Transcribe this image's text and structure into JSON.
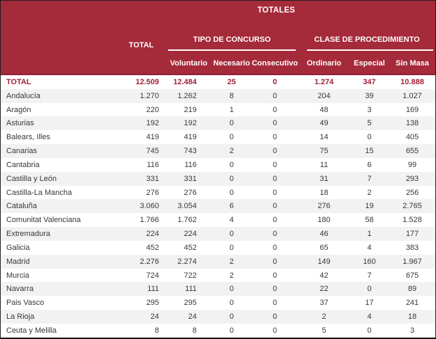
{
  "header": {
    "totales": "TOTALES",
    "total_column": "TOTAL",
    "groups": {
      "tipo": "TIPO DE CONCURSO",
      "clase": "CLASE DE PROCEDIMIENTO"
    },
    "subcolumns": [
      "Voluntario",
      "Necesario",
      "Consecutivo",
      "Ordinario",
      "Especial",
      "Sin Masa"
    ]
  },
  "colors": {
    "header_bg": "#A52A3A",
    "divider": "#8C2138",
    "stripe": "#F2F2F2",
    "total_text": "#9E2239",
    "body_text": "#373737"
  },
  "table": {
    "rows": [
      {
        "label": "TOTAL",
        "values": [
          "12.509",
          "12.484",
          "25",
          "0",
          "1.274",
          "347",
          "10.888"
        ]
      },
      {
        "label": "Andalucía",
        "values": [
          "1.270",
          "1.262",
          "8",
          "0",
          "204",
          "39",
          "1.027"
        ]
      },
      {
        "label": "Aragón",
        "values": [
          "220",
          "219",
          "1",
          "0",
          "48",
          "3",
          "169"
        ]
      },
      {
        "label": "Asturias",
        "values": [
          "192",
          "192",
          "0",
          "0",
          "49",
          "5",
          "138"
        ]
      },
      {
        "label": "Balears, Illes",
        "values": [
          "419",
          "419",
          "0",
          "0",
          "14",
          "0",
          "405"
        ]
      },
      {
        "label": "Canarias",
        "values": [
          "745",
          "743",
          "2",
          "0",
          "75",
          "15",
          "655"
        ]
      },
      {
        "label": "Cantabria",
        "values": [
          "116",
          "116",
          "0",
          "0",
          "11",
          "6",
          "99"
        ]
      },
      {
        "label": "Castilla y León",
        "values": [
          "331",
          "331",
          "0",
          "0",
          "31",
          "7",
          "293"
        ]
      },
      {
        "label": "Castilla-La Mancha",
        "values": [
          "276",
          "276",
          "0",
          "0",
          "18",
          "2",
          "256"
        ]
      },
      {
        "label": "Cataluña",
        "values": [
          "3.060",
          "3.054",
          "6",
          "0",
          "276",
          "19",
          "2.765"
        ]
      },
      {
        "label": "Comunitat Valenciana",
        "values": [
          "1.766",
          "1.762",
          "4",
          "0",
          "180",
          "58",
          "1.528"
        ]
      },
      {
        "label": "Extremadura",
        "values": [
          "224",
          "224",
          "0",
          "0",
          "46",
          "1",
          "177"
        ]
      },
      {
        "label": "Galicia",
        "values": [
          "452",
          "452",
          "0",
          "0",
          "65",
          "4",
          "383"
        ]
      },
      {
        "label": "Madrid",
        "values": [
          "2.276",
          "2.274",
          "2",
          "0",
          "149",
          "160",
          "1.967"
        ]
      },
      {
        "label": "Murcia",
        "values": [
          "724",
          "722",
          "2",
          "0",
          "42",
          "7",
          "675"
        ]
      },
      {
        "label": "Navarra",
        "values": [
          "111",
          "111",
          "0",
          "0",
          "22",
          "0",
          "89"
        ]
      },
      {
        "label": "Pais Vasco",
        "values": [
          "295",
          "295",
          "0",
          "0",
          "37",
          "17",
          "241"
        ]
      },
      {
        "label": "La Rioja",
        "values": [
          "24",
          "24",
          "0",
          "0",
          "2",
          "4",
          "18"
        ]
      },
      {
        "label": "Ceuta y Melilla",
        "values": [
          "8",
          "8",
          "0",
          "0",
          "5",
          "0",
          "3"
        ]
      }
    ]
  },
  "chart_data": {
    "type": "table",
    "title": "TOTALES",
    "column_groups": [
      {
        "name": "TIPO DE CONCURSO",
        "columns": [
          "Voluntario",
          "Necesario",
          "Consecutivo"
        ]
      },
      {
        "name": "CLASE DE PROCEDIMIENTO",
        "columns": [
          "Ordinario",
          "Especial",
          "Sin Masa"
        ]
      }
    ],
    "columns": [
      "TOTAL",
      "Voluntario",
      "Necesario",
      "Consecutivo",
      "Ordinario",
      "Especial",
      "Sin Masa"
    ],
    "rows": [
      {
        "region": "TOTAL",
        "total": 12509,
        "voluntario": 12484,
        "necesario": 25,
        "consecutivo": 0,
        "ordinario": 1274,
        "especial": 347,
        "sin_masa": 10888
      },
      {
        "region": "Andalucía",
        "total": 1270,
        "voluntario": 1262,
        "necesario": 8,
        "consecutivo": 0,
        "ordinario": 204,
        "especial": 39,
        "sin_masa": 1027
      },
      {
        "region": "Aragón",
        "total": 220,
        "voluntario": 219,
        "necesario": 1,
        "consecutivo": 0,
        "ordinario": 48,
        "especial": 3,
        "sin_masa": 169
      },
      {
        "region": "Asturias",
        "total": 192,
        "voluntario": 192,
        "necesario": 0,
        "consecutivo": 0,
        "ordinario": 49,
        "especial": 5,
        "sin_masa": 138
      },
      {
        "region": "Balears, Illes",
        "total": 419,
        "voluntario": 419,
        "necesario": 0,
        "consecutivo": 0,
        "ordinario": 14,
        "especial": 0,
        "sin_masa": 405
      },
      {
        "region": "Canarias",
        "total": 745,
        "voluntario": 743,
        "necesario": 2,
        "consecutivo": 0,
        "ordinario": 75,
        "especial": 15,
        "sin_masa": 655
      },
      {
        "region": "Cantabria",
        "total": 116,
        "voluntario": 116,
        "necesario": 0,
        "consecutivo": 0,
        "ordinario": 11,
        "especial": 6,
        "sin_masa": 99
      },
      {
        "region": "Castilla y León",
        "total": 331,
        "voluntario": 331,
        "necesario": 0,
        "consecutivo": 0,
        "ordinario": 31,
        "especial": 7,
        "sin_masa": 293
      },
      {
        "region": "Castilla-La Mancha",
        "total": 276,
        "voluntario": 276,
        "necesario": 0,
        "consecutivo": 0,
        "ordinario": 18,
        "especial": 2,
        "sin_masa": 256
      },
      {
        "region": "Cataluña",
        "total": 3060,
        "voluntario": 3054,
        "necesario": 6,
        "consecutivo": 0,
        "ordinario": 276,
        "especial": 19,
        "sin_masa": 2765
      },
      {
        "region": "Comunitat Valenciana",
        "total": 1766,
        "voluntario": 1762,
        "necesario": 4,
        "consecutivo": 0,
        "ordinario": 180,
        "especial": 58,
        "sin_masa": 1528
      },
      {
        "region": "Extremadura",
        "total": 224,
        "voluntario": 224,
        "necesario": 0,
        "consecutivo": 0,
        "ordinario": 46,
        "especial": 1,
        "sin_masa": 177
      },
      {
        "region": "Galicia",
        "total": 452,
        "voluntario": 452,
        "necesario": 0,
        "consecutivo": 0,
        "ordinario": 65,
        "especial": 4,
        "sin_masa": 383
      },
      {
        "region": "Madrid",
        "total": 2276,
        "voluntario": 2274,
        "necesario": 2,
        "consecutivo": 0,
        "ordinario": 149,
        "especial": 160,
        "sin_masa": 1967
      },
      {
        "region": "Murcia",
        "total": 724,
        "voluntario": 722,
        "necesario": 2,
        "consecutivo": 0,
        "ordinario": 42,
        "especial": 7,
        "sin_masa": 675
      },
      {
        "region": "Navarra",
        "total": 111,
        "voluntario": 111,
        "necesario": 0,
        "consecutivo": 0,
        "ordinario": 22,
        "especial": 0,
        "sin_masa": 89
      },
      {
        "region": "Pais Vasco",
        "total": 295,
        "voluntario": 295,
        "necesario": 0,
        "consecutivo": 0,
        "ordinario": 37,
        "especial": 17,
        "sin_masa": 241
      },
      {
        "region": "La Rioja",
        "total": 24,
        "voluntario": 24,
        "necesario": 0,
        "consecutivo": 0,
        "ordinario": 2,
        "especial": 4,
        "sin_masa": 18
      },
      {
        "region": "Ceuta y Melilla",
        "total": 8,
        "voluntario": 8,
        "necesario": 0,
        "consecutivo": 0,
        "ordinario": 5,
        "especial": 0,
        "sin_masa": 3
      }
    ]
  }
}
